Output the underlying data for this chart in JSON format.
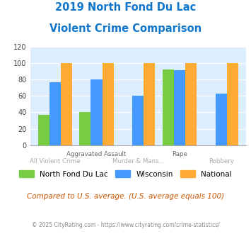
{
  "title_line1": "2019 North Fond Du Lac",
  "title_line2": "Violent Crime Comparison",
  "categories": [
    "All Violent Crime",
    "Aggravated Assault",
    "Murder & Mans...",
    "Rape",
    "Robbery"
  ],
  "series": {
    "North Fond Du Lac": [
      37,
      40,
      0,
      92,
      0
    ],
    "Wisconsin": [
      77,
      80,
      60,
      91,
      63
    ],
    "National": [
      100,
      100,
      100,
      100,
      100
    ]
  },
  "colors": {
    "North Fond Du Lac": "#77cc44",
    "Wisconsin": "#4499ff",
    "National": "#ffaa33"
  },
  "ylim": [
    0,
    120
  ],
  "yticks": [
    0,
    20,
    40,
    60,
    80,
    100,
    120
  ],
  "bg_color": "#ddeeff",
  "title_color": "#1177cc",
  "note_text": "Compared to U.S. average. (U.S. average equals 100)",
  "note_color": "#cc5500",
  "credit_text": "© 2025 CityRating.com - https://www.cityrating.com/crime-statistics/",
  "credit_color": "#888888",
  "top_labels": {
    "1": "Aggravated Assault",
    "3": "Rape"
  },
  "bottom_labels": {
    "0": "All Violent Crime",
    "2": "Murder & Mans...",
    "4": "Robbery"
  }
}
